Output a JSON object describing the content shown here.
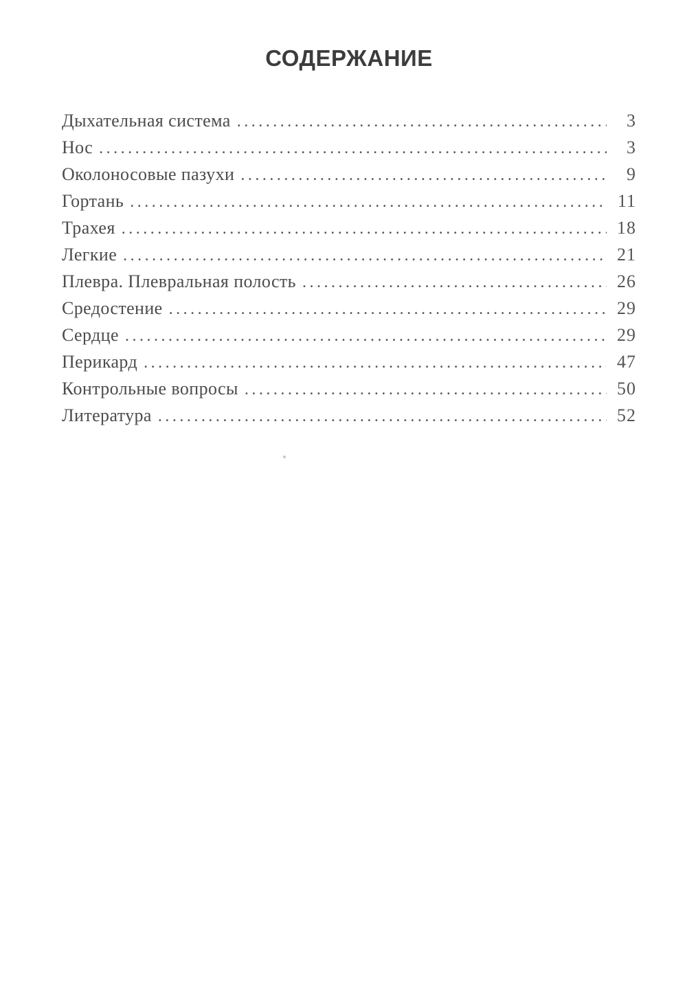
{
  "title": "СОДЕРЖАНИЕ",
  "toc": {
    "items": [
      {
        "label": "Дыхательная система",
        "page": "3"
      },
      {
        "label": "Нос",
        "page": "3"
      },
      {
        "label": "Околоносовые пазухи",
        "page": "9"
      },
      {
        "label": "Гортань",
        "page": "11"
      },
      {
        "label": "Трахея",
        "page": "18"
      },
      {
        "label": "Легкие",
        "page": "21"
      },
      {
        "label": "Плевра. Плевральная полость",
        "page": "26"
      },
      {
        "label": "Средостение",
        "page": "29"
      },
      {
        "label": "Сердце",
        "page": "29"
      },
      {
        "label": "Перикард",
        "page": "47"
      },
      {
        "label": "Контрольные вопросы",
        "page": "50"
      },
      {
        "label": "Литература",
        "page": "52"
      }
    ]
  }
}
